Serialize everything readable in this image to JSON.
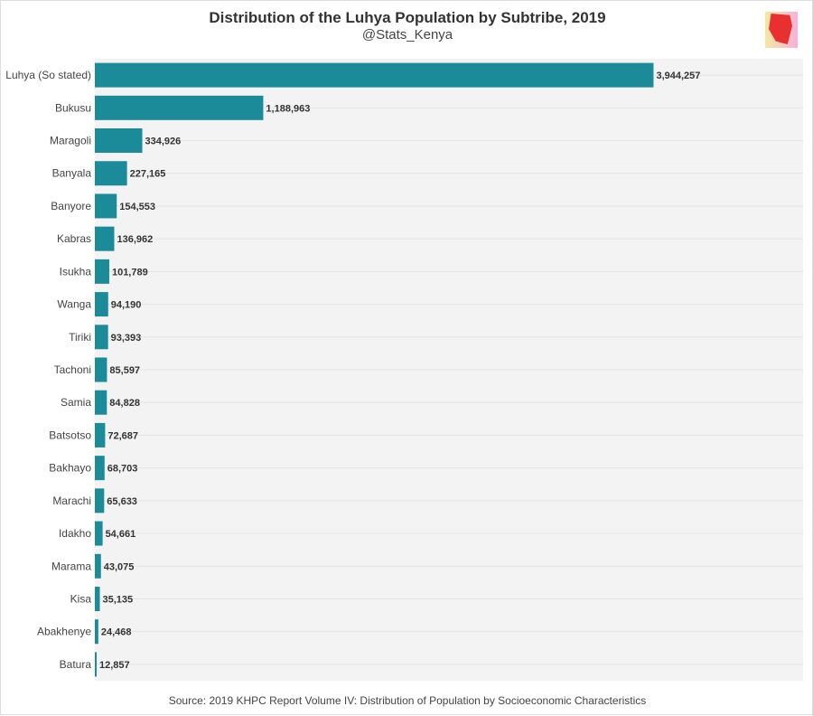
{
  "chart_data": {
    "type": "bar",
    "orientation": "horizontal",
    "title": "Distribution of the Luhya Population by Subtribe, 2019",
    "subtitle": "@Stats_Kenya",
    "source": "Source: 2019 KHPC Report Volume IV: Distribution of Population by Socioeconomic Characteristics",
    "categories": [
      "Luhya (So stated)",
      "Bukusu",
      "Maragoli",
      "Banyala",
      "Banyore",
      "Kabras",
      "Isukha",
      "Wanga",
      "Tiriki",
      "Tachoni",
      "Samia",
      "Batsotso",
      "Bakhayo",
      "Marachi",
      "Idakho",
      "Marama",
      "Kisa",
      "Abakhenye",
      "Batura"
    ],
    "values": [
      3944257,
      1188963,
      334926,
      227165,
      154553,
      136962,
      101789,
      94190,
      93393,
      85597,
      84828,
      72687,
      68703,
      65633,
      54661,
      43075,
      35135,
      24468,
      12857
    ],
    "labels": [
      "3,944,257",
      "1,188,963",
      "334,926",
      "227,165",
      "154,553",
      "136,962",
      "101,789",
      "94,190",
      "93,393",
      "85,597",
      "84,828",
      "72,687",
      "68,703",
      "65,633",
      "54,661",
      "43,075",
      "35,135",
      "24,468",
      "12,857"
    ],
    "xlim": [
      0,
      5000000
    ],
    "bar_color": "#1b8a99",
    "grid": false
  }
}
